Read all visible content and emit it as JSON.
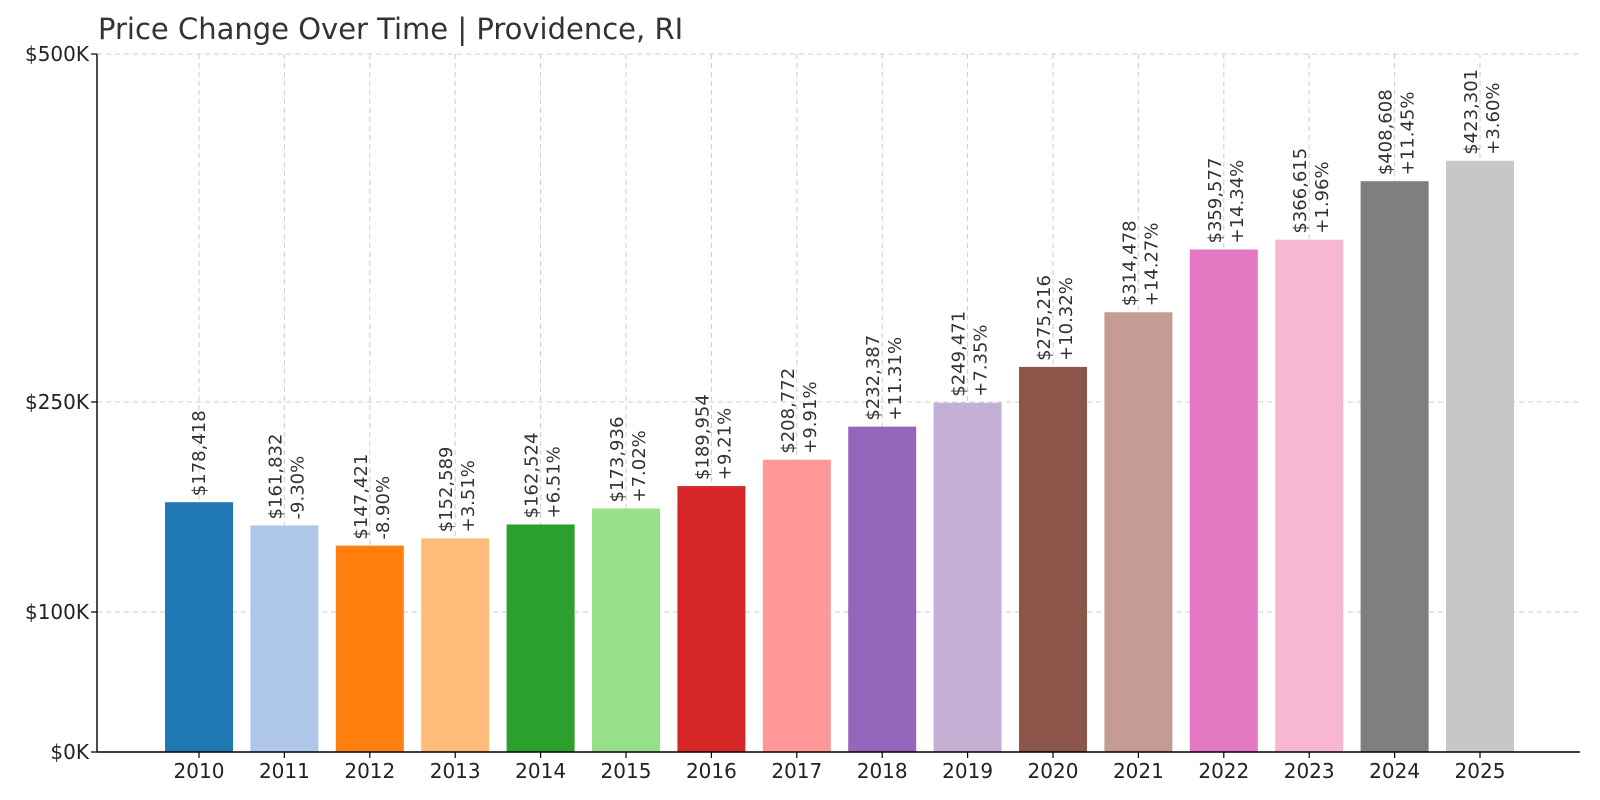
{
  "chart_data": {
    "type": "bar",
    "title": "Price Change Over Time | Providence, RI",
    "xlabel": "",
    "ylabel": "",
    "y_scale": "piecewise (tick labels $0K, $100K, $250K, $500K)",
    "ylim": [
      0,
      500000
    ],
    "grid": true,
    "legend": "none",
    "y_ticks": [
      {
        "value": 0,
        "label": "$0K"
      },
      {
        "value": 100000,
        "label": "$100K"
      },
      {
        "value": 250000,
        "label": "$250K"
      },
      {
        "value": 500000,
        "label": "$500K"
      }
    ],
    "categories": [
      "2010",
      "2011",
      "2012",
      "2013",
      "2014",
      "2015",
      "2016",
      "2017",
      "2018",
      "2019",
      "2020",
      "2021",
      "2022",
      "2023",
      "2024",
      "2025"
    ],
    "values": [
      178418,
      161832,
      147421,
      152589,
      162524,
      173936,
      189954,
      208772,
      232387,
      249471,
      275216,
      314478,
      359577,
      366615,
      408608,
      423301
    ],
    "value_labels": [
      "$178,418",
      "$161,832",
      "$147,421",
      "$152,589",
      "$162,524",
      "$173,936",
      "$189,954",
      "$208,772",
      "$232,387",
      "$249,471",
      "$275,216",
      "$314,478",
      "$359,577",
      "$366,615",
      "$408,608",
      "$423,301"
    ],
    "change_labels": [
      "",
      "-9.30%",
      "-8.90%",
      "+3.51%",
      "+6.51%",
      "+7.02%",
      "+9.21%",
      "+9.91%",
      "+11.31%",
      "+7.35%",
      "+10.32%",
      "+14.27%",
      "+14.34%",
      "+1.96%",
      "+11.45%",
      "+3.60%"
    ],
    "colors": [
      "#1f77b4",
      "#aec7e8",
      "#ff7f0e",
      "#ffbb78",
      "#2ca02c",
      "#98df8a",
      "#d62728",
      "#ff9896",
      "#9467bd",
      "#c5b0d5",
      "#8c564b",
      "#c49c94",
      "#e377c2",
      "#f7b6d2",
      "#7f7f7f",
      "#c7c7c7"
    ]
  }
}
